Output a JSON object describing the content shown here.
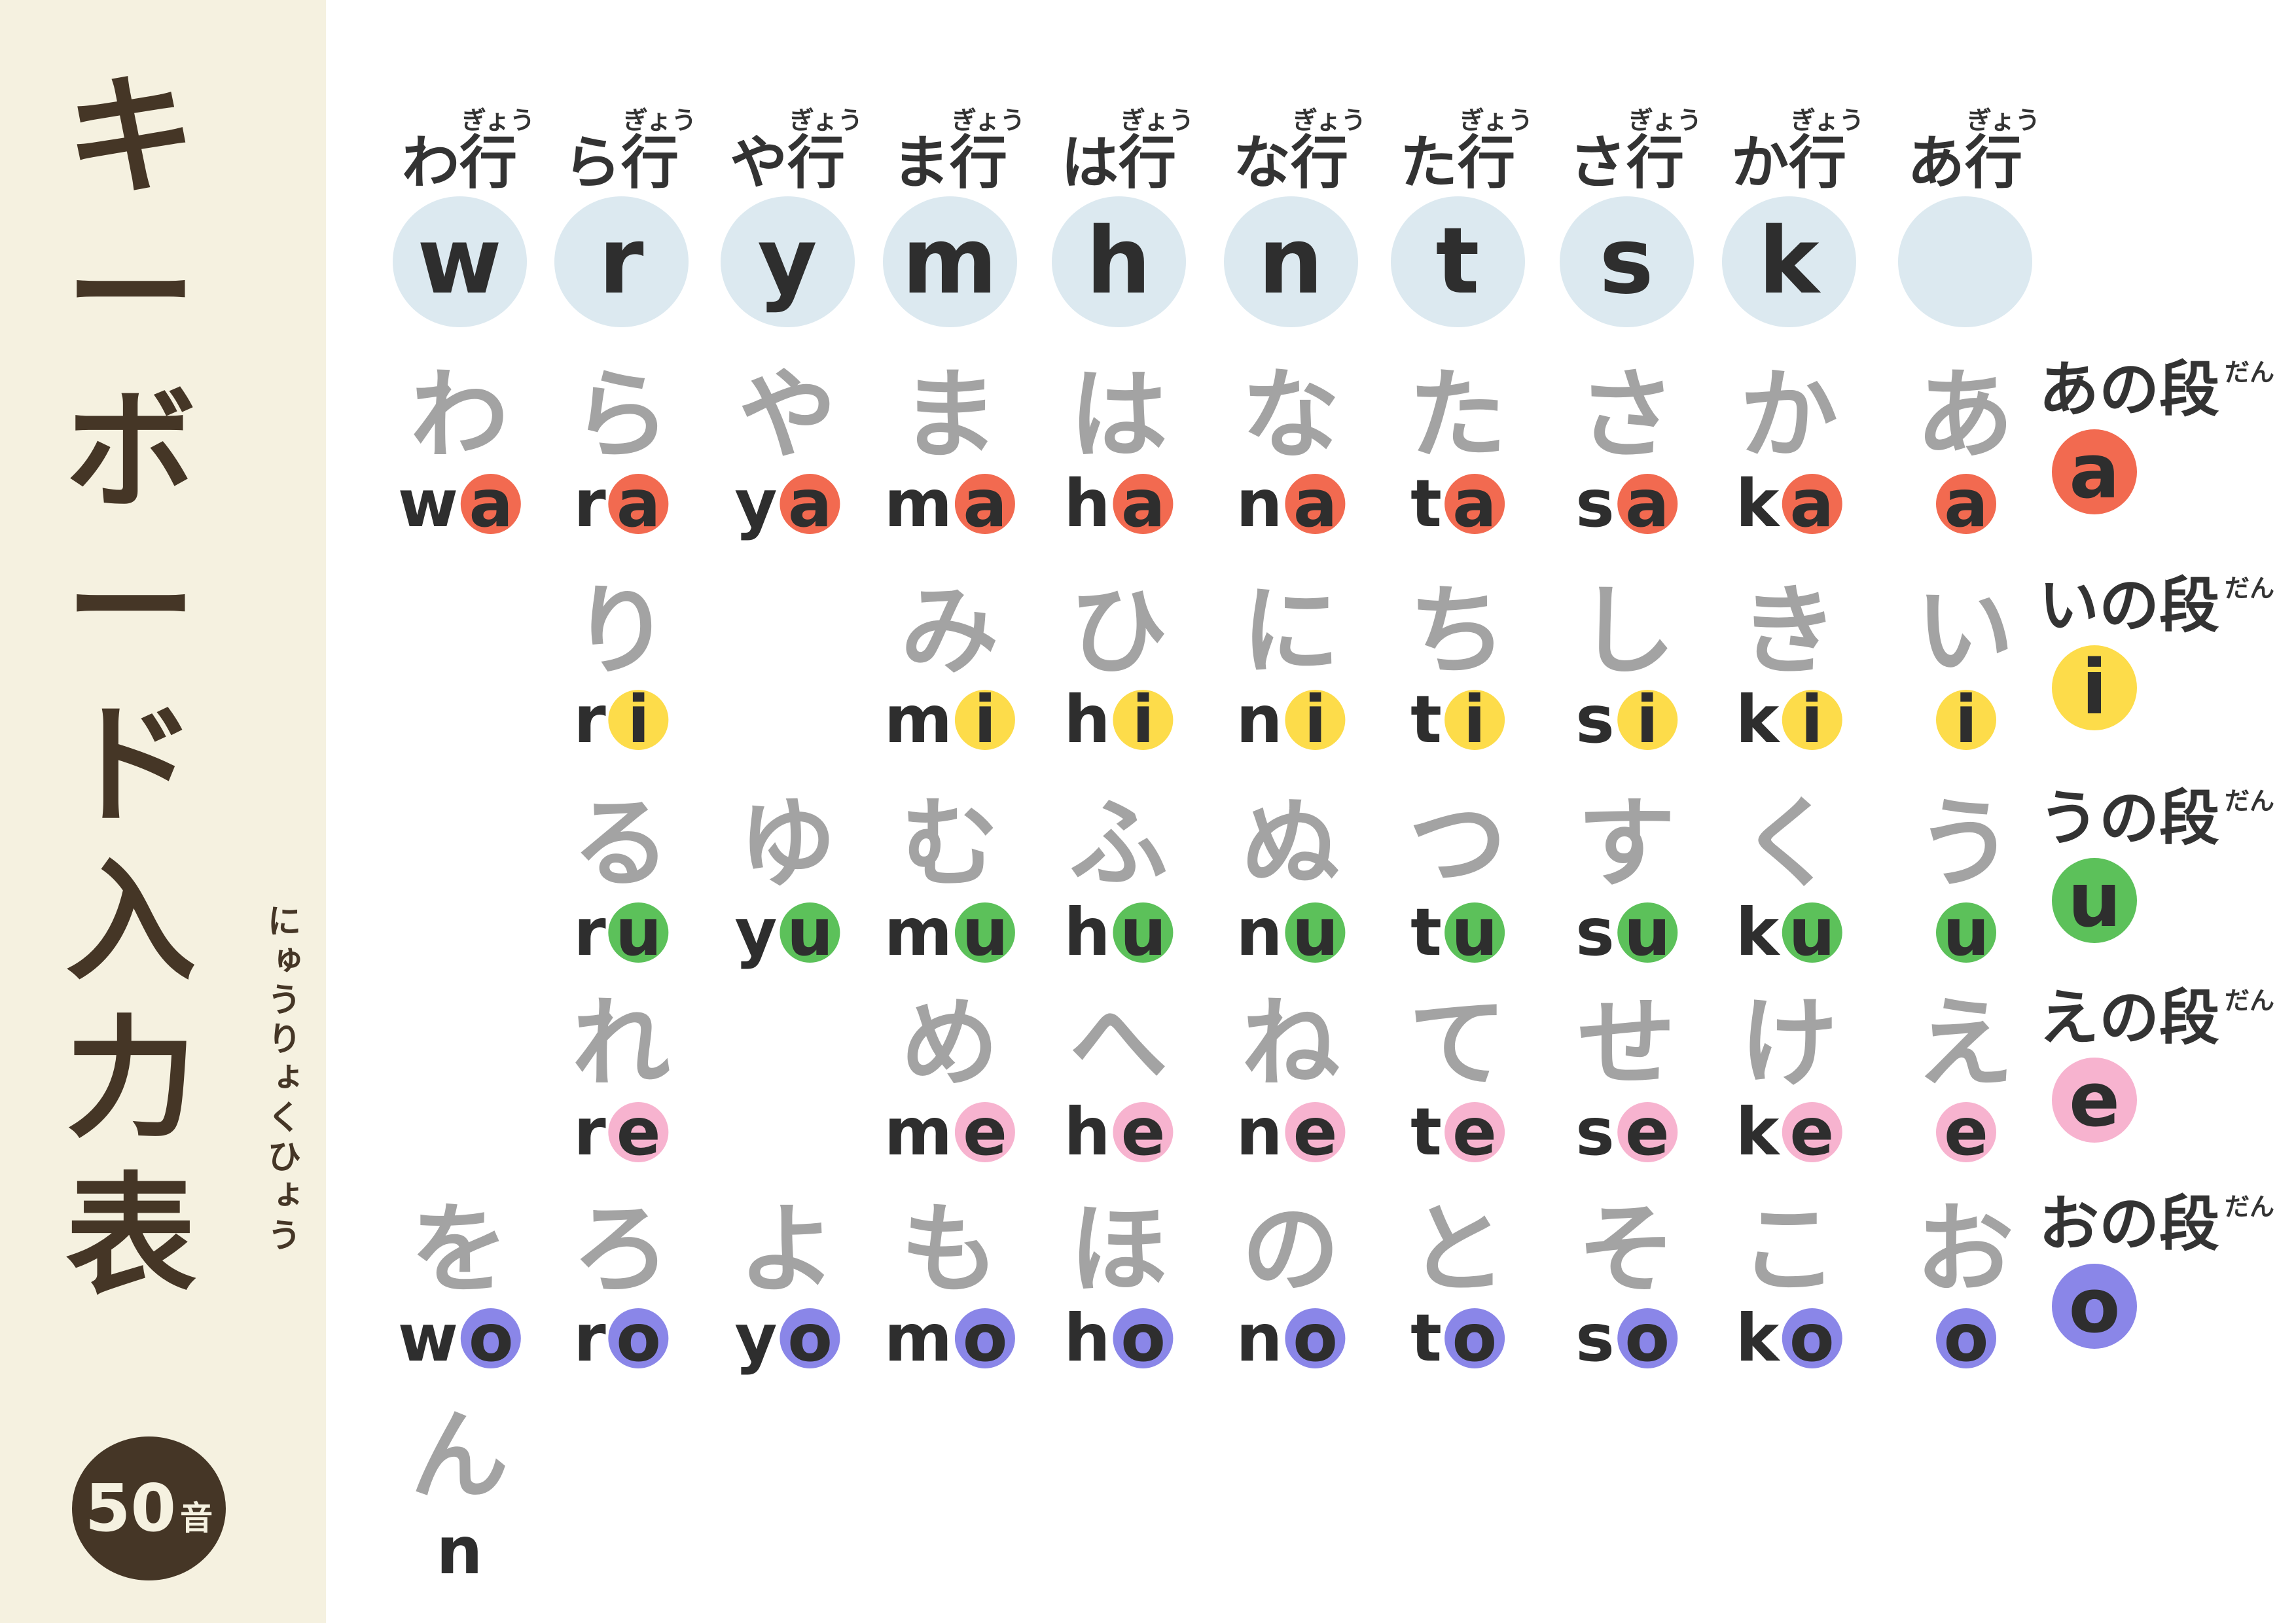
{
  "title": {
    "chars": [
      "キ",
      "ー",
      "ボ",
      "ー",
      "ド",
      "入",
      "力",
      "表"
    ],
    "ruby": "にゅうりょくひょう",
    "badge_number": "50",
    "badge_unit": "音"
  },
  "gyou_ruby": "ぎょう",
  "dan_ruby": "だん",
  "vowel_colors": {
    "a": "#f26a50",
    "i": "#fddc4a",
    "u": "#5cc15a",
    "e": "#f7b3cf",
    "o": "#8a86e8"
  },
  "key_circle_color": "#dce9f0",
  "columns": [
    {
      "gyou": "わ行",
      "key": "w",
      "cells": [
        {
          "kana": "わ",
          "cons": "w",
          "vowel": "a"
        },
        null,
        null,
        null,
        {
          "kana": "を",
          "cons": "w",
          "vowel": "o"
        }
      ]
    },
    {
      "gyou": "ら行",
      "key": "r",
      "cells": [
        {
          "kana": "ら",
          "cons": "r",
          "vowel": "a"
        },
        {
          "kana": "り",
          "cons": "r",
          "vowel": "i"
        },
        {
          "kana": "る",
          "cons": "r",
          "vowel": "u"
        },
        {
          "kana": "れ",
          "cons": "r",
          "vowel": "e"
        },
        {
          "kana": "ろ",
          "cons": "r",
          "vowel": "o"
        }
      ]
    },
    {
      "gyou": "や行",
      "key": "y",
      "cells": [
        {
          "kana": "や",
          "cons": "y",
          "vowel": "a"
        },
        null,
        {
          "kana": "ゆ",
          "cons": "y",
          "vowel": "u"
        },
        null,
        {
          "kana": "よ",
          "cons": "y",
          "vowel": "o"
        }
      ]
    },
    {
      "gyou": "ま行",
      "key": "m",
      "cells": [
        {
          "kana": "ま",
          "cons": "m",
          "vowel": "a"
        },
        {
          "kana": "み",
          "cons": "m",
          "vowel": "i"
        },
        {
          "kana": "む",
          "cons": "m",
          "vowel": "u"
        },
        {
          "kana": "め",
          "cons": "m",
          "vowel": "e"
        },
        {
          "kana": "も",
          "cons": "m",
          "vowel": "o"
        }
      ]
    },
    {
      "gyou": "は行",
      "key": "h",
      "cells": [
        {
          "kana": "は",
          "cons": "h",
          "vowel": "a"
        },
        {
          "kana": "ひ",
          "cons": "h",
          "vowel": "i"
        },
        {
          "kana": "ふ",
          "cons": "h",
          "vowel": "u"
        },
        {
          "kana": "へ",
          "cons": "h",
          "vowel": "e"
        },
        {
          "kana": "ほ",
          "cons": "h",
          "vowel": "o"
        }
      ]
    },
    {
      "gyou": "な行",
      "key": "n",
      "cells": [
        {
          "kana": "な",
          "cons": "n",
          "vowel": "a"
        },
        {
          "kana": "に",
          "cons": "n",
          "vowel": "i"
        },
        {
          "kana": "ぬ",
          "cons": "n",
          "vowel": "u"
        },
        {
          "kana": "ね",
          "cons": "n",
          "vowel": "e"
        },
        {
          "kana": "の",
          "cons": "n",
          "vowel": "o"
        }
      ]
    },
    {
      "gyou": "た行",
      "key": "t",
      "cells": [
        {
          "kana": "た",
          "cons": "t",
          "vowel": "a"
        },
        {
          "kana": "ち",
          "cons": "t",
          "vowel": "i"
        },
        {
          "kana": "つ",
          "cons": "t",
          "vowel": "u"
        },
        {
          "kana": "て",
          "cons": "t",
          "vowel": "e"
        },
        {
          "kana": "と",
          "cons": "t",
          "vowel": "o"
        }
      ]
    },
    {
      "gyou": "さ行",
      "key": "s",
      "cells": [
        {
          "kana": "さ",
          "cons": "s",
          "vowel": "a"
        },
        {
          "kana": "し",
          "cons": "s",
          "vowel": "i"
        },
        {
          "kana": "す",
          "cons": "s",
          "vowel": "u"
        },
        {
          "kana": "せ",
          "cons": "s",
          "vowel": "e"
        },
        {
          "kana": "そ",
          "cons": "s",
          "vowel": "o"
        }
      ]
    },
    {
      "gyou": "か行",
      "key": "k",
      "cells": [
        {
          "kana": "か",
          "cons": "k",
          "vowel": "a"
        },
        {
          "kana": "き",
          "cons": "k",
          "vowel": "i"
        },
        {
          "kana": "く",
          "cons": "k",
          "vowel": "u"
        },
        {
          "kana": "け",
          "cons": "k",
          "vowel": "e"
        },
        {
          "kana": "こ",
          "cons": "k",
          "vowel": "o"
        }
      ]
    },
    {
      "gyou": "あ行",
      "key": "",
      "cells": [
        {
          "kana": "あ",
          "cons": "",
          "vowel": "a"
        },
        {
          "kana": "い",
          "cons": "",
          "vowel": "i"
        },
        {
          "kana": "う",
          "cons": "",
          "vowel": "u"
        },
        {
          "kana": "え",
          "cons": "",
          "vowel": "e"
        },
        {
          "kana": "お",
          "cons": "",
          "vowel": "o"
        }
      ]
    }
  ],
  "dan": [
    {
      "label": "あの段",
      "vowel": "a"
    },
    {
      "label": "いの段",
      "vowel": "i"
    },
    {
      "label": "うの段",
      "vowel": "u"
    },
    {
      "label": "えの段",
      "vowel": "e"
    },
    {
      "label": "おの段",
      "vowel": "o"
    }
  ],
  "n_cell": {
    "kana": "ん",
    "romaji": "n"
  }
}
